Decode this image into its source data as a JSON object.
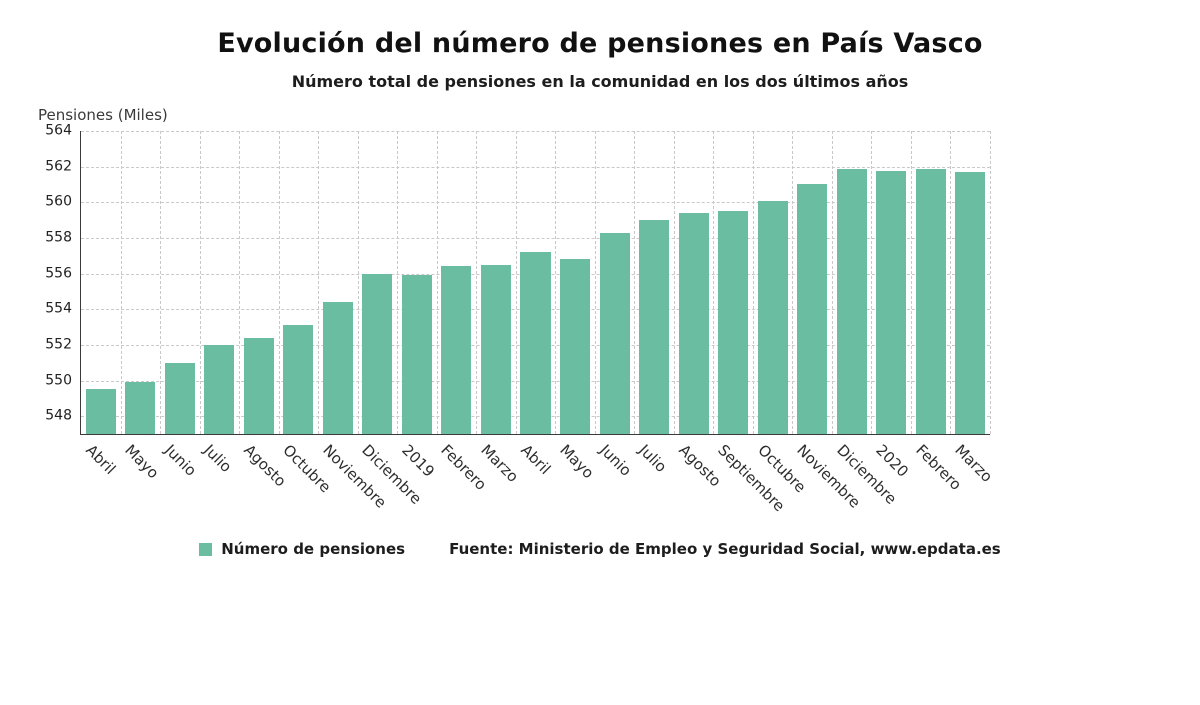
{
  "chart_data": {
    "type": "bar",
    "title": "Evolución del número de pensiones en País Vasco",
    "subtitle": "Número total de pensiones en la comunidad en los dos últimos años",
    "ylabel": "Pensiones (Miles)",
    "legend": "Número de pensiones",
    "source": "Fuente: Ministerio de Empleo y Seguridad Social, www.epdata.es",
    "bar_color": "#6abda0",
    "grid": "dashed",
    "legend_position": "bottom",
    "categories": [
      "Abril",
      "Mayo",
      "Junio",
      "Julio",
      "Agosto",
      "Octubre",
      "Noviembre",
      "Diciembre",
      "2019",
      "Febrero",
      "Marzo",
      "Abril",
      "Mayo",
      "Junio",
      "Julio",
      "Agosto",
      "Septiembre",
      "Octubre",
      "Noviembre",
      "Diciembre",
      "2020",
      "Febrero",
      "Marzo"
    ],
    "values": [
      549.5,
      549.9,
      551.0,
      552.0,
      552.4,
      553.1,
      554.4,
      556.0,
      555.9,
      556.4,
      556.5,
      557.2,
      556.8,
      558.3,
      559.0,
      559.4,
      559.5,
      560.1,
      561.0,
      561.85,
      561.75,
      561.85,
      561.7
    ],
    "ylim": [
      547,
      564
    ],
    "yticks": [
      548,
      550,
      552,
      554,
      556,
      558,
      560,
      562,
      564
    ]
  }
}
